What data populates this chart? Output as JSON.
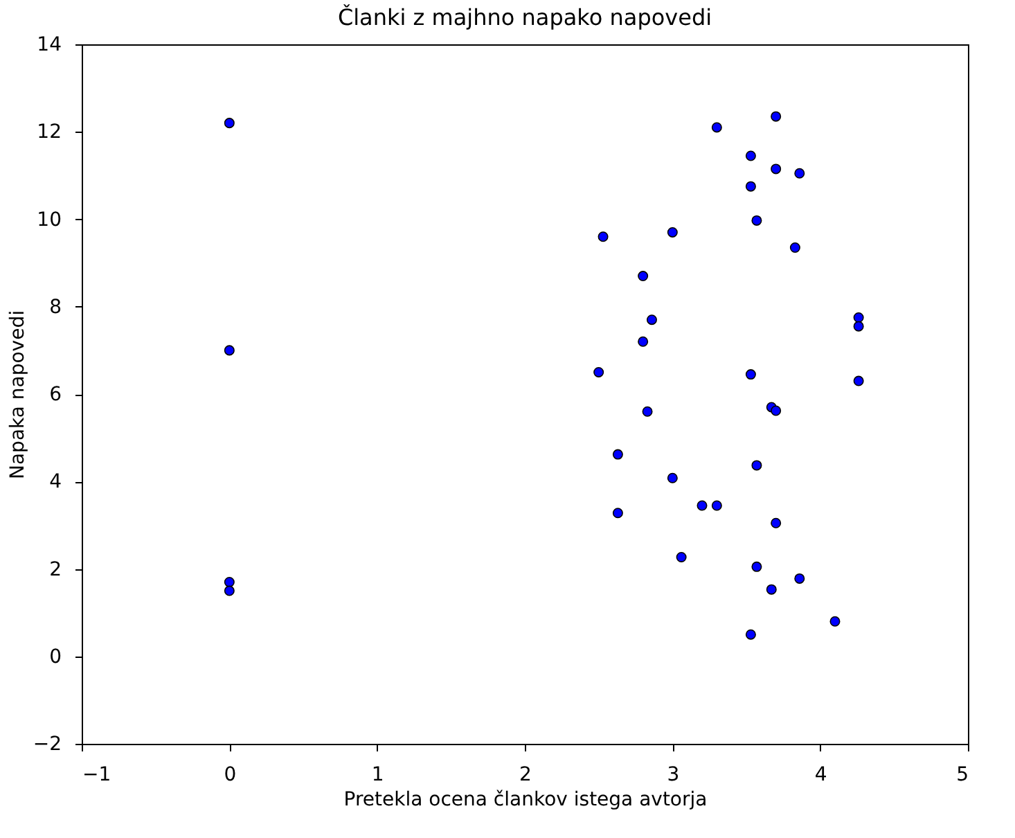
{
  "chart_data": {
    "type": "scatter",
    "title": "Članki z majhno napako napovedi",
    "xlabel": "Pretekla ocena člankov istega avtorja",
    "ylabel": "Napaka napovedi",
    "xlim": [
      -1,
      5
    ],
    "xticks": [
      -1,
      0,
      1,
      2,
      3,
      4,
      5
    ],
    "ylim": [
      -2,
      14
    ],
    "yticks": [
      -2,
      0,
      2,
      4,
      6,
      8,
      10,
      12,
      14
    ],
    "grid": false,
    "legend": false,
    "marker": "circle",
    "series": [
      {
        "color": "#0000ff",
        "x": [
          0,
          0,
          0,
          0,
          3.3,
          3.7,
          3.53,
          3.7,
          3.86,
          3.53,
          3.57,
          2.53,
          3.0,
          3.83,
          2.8,
          2.86,
          2.8,
          4.26,
          4.26,
          2.5,
          3.53,
          4.26,
          2.83,
          3.67,
          3.7,
          2.63,
          3.57,
          3.0,
          2.63,
          3.2,
          3.3,
          3.7,
          3.06,
          3.57,
          3.86,
          3.67,
          4.1,
          3.53
        ],
        "values": [
          12.2,
          7.0,
          1.7,
          1.5,
          12.1,
          12.35,
          11.45,
          11.15,
          11.05,
          10.75,
          9.97,
          9.6,
          9.7,
          9.35,
          8.7,
          7.7,
          7.2,
          7.75,
          7.55,
          6.5,
          6.45,
          6.3,
          5.6,
          5.7,
          5.62,
          4.62,
          4.37,
          4.08,
          3.28,
          3.45,
          3.45,
          3.05,
          2.27,
          2.05,
          1.78,
          1.53,
          0.8,
          0.5
        ]
      }
    ]
  }
}
